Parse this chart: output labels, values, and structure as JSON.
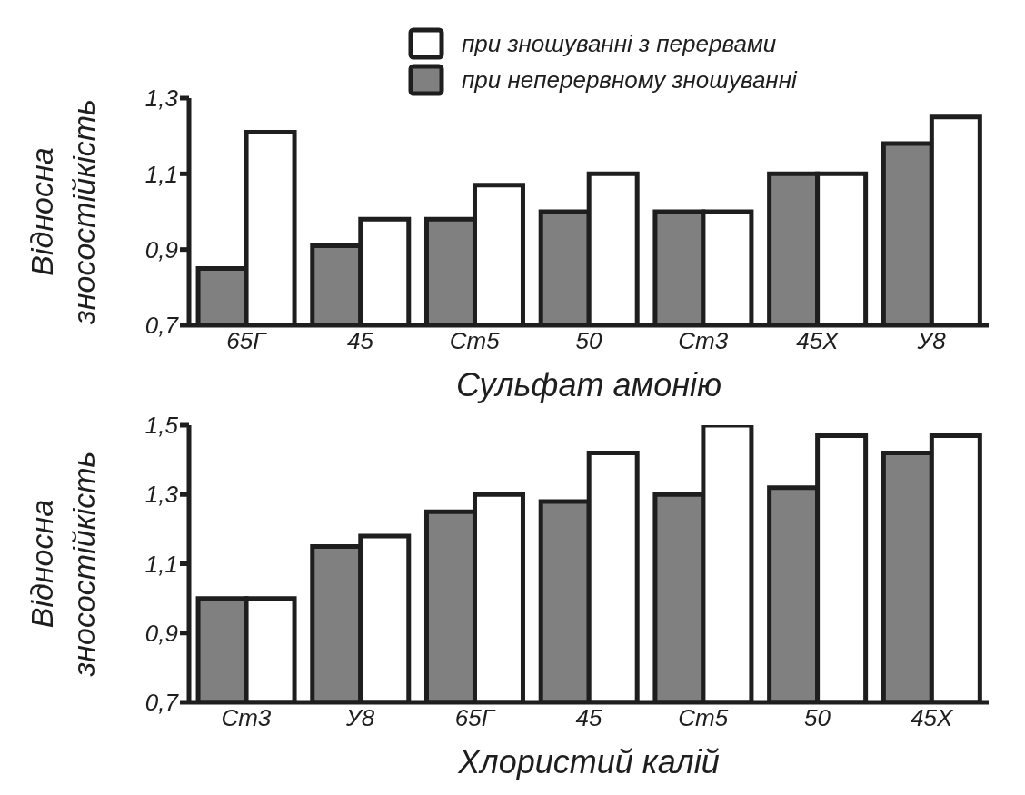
{
  "chart_data": [
    {
      "type": "bar",
      "xlabel": "Сульфат амонію",
      "ylabel": "Відносна зносостійкість",
      "categories": [
        "65Г",
        "45",
        "Ст5",
        "50",
        "Ст3",
        "45Х",
        "У8"
      ],
      "series": [
        {
          "name": "при неперервному зношуванні",
          "color": "#808080",
          "values": [
            0.85,
            0.91,
            0.98,
            1.0,
            1.0,
            1.1,
            1.18
          ]
        },
        {
          "name": "при зношуванні з перервами",
          "color": "#ffffff",
          "values": [
            1.21,
            0.98,
            1.07,
            1.1,
            1.0,
            1.1,
            1.25
          ]
        }
      ],
      "ylim": [
        0.7,
        1.3
      ],
      "yticks": [
        {
          "value": 0.7,
          "label": "0,7"
        },
        {
          "value": 0.9,
          "label": "0,9"
        },
        {
          "value": 1.1,
          "label": "1,1"
        },
        {
          "value": 1.3,
          "label": "1,3"
        }
      ],
      "legend": "top"
    },
    {
      "type": "bar",
      "xlabel": "Хлористий калій",
      "ylabel": "Відносна зносостійкість",
      "categories": [
        "Ст3",
        "У8",
        "65Г",
        "45",
        "Ст5",
        "50",
        "45Х"
      ],
      "series": [
        {
          "color": "#808080",
          "values": [
            1.0,
            1.15,
            1.25,
            1.28,
            1.3,
            1.32,
            1.42
          ]
        },
        {
          "color": "#ffffff",
          "values": [
            1.0,
            1.18,
            1.3,
            1.42,
            1.5,
            1.47,
            1.47
          ]
        }
      ],
      "ylim": [
        0.7,
        1.5
      ],
      "yticks": [
        {
          "value": 0.7,
          "label": "0,7"
        },
        {
          "value": 0.9,
          "label": "0,9"
        },
        {
          "value": 1.1,
          "label": "1,1"
        },
        {
          "value": 1.3,
          "label": "1,3"
        },
        {
          "value": 1.5,
          "label": "1,5"
        }
      ]
    }
  ]
}
